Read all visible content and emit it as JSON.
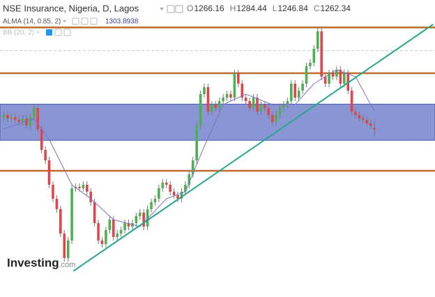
{
  "chart_data": {
    "type": "candlestick",
    "title": "NSE Insurance, Nigeria, D, Lagos",
    "ohlc_labels": [
      "O",
      "H",
      "L",
      "C"
    ],
    "open": [
      1290,
      1296,
      1288,
      1291,
      1285,
      1280,
      1288,
      1272,
      1291,
      1312,
      1264,
      1216,
      1192,
      1136,
      1104,
      1080,
      1024,
      968,
      1008,
      1128,
      1131,
      1128,
      1136,
      1120,
      1096,
      1048,
      1008,
      1000,
      1032,
      1056,
      1016,
      1024,
      1032,
      1048,
      1040,
      1048,
      1064,
      1072,
      1040,
      1080,
      1096,
      1104,
      1128,
      1141,
      1136,
      1120,
      1112,
      1104,
      1120,
      1136,
      1160,
      1192,
      1272,
      1344,
      1360,
      1304,
      1320,
      1312,
      1328,
      1336,
      1344,
      1336,
      1392,
      1368,
      1336,
      1328,
      1312,
      1336,
      1304,
      1320,
      1312,
      1296,
      1280,
      1296,
      1312,
      1320,
      1328,
      1368,
      1336,
      1352,
      1368,
      1408,
      1416,
      1448,
      1488,
      1384,
      1368,
      1392,
      1384,
      1400,
      1368,
      1392,
      1352,
      1304,
      1296,
      1288,
      1285,
      1277,
      1266.16
    ],
    "high": [
      1304,
      1304,
      1299,
      1299,
      1293,
      1296,
      1296,
      1299,
      1320,
      1320,
      1272,
      1224,
      1200,
      1144,
      1112,
      1088,
      1032,
      1016,
      1136,
      1139,
      1139,
      1144,
      1144,
      1128,
      1104,
      1056,
      1016,
      1040,
      1064,
      1064,
      1032,
      1040,
      1056,
      1056,
      1056,
      1072,
      1080,
      1080,
      1088,
      1104,
      1112,
      1136,
      1149,
      1149,
      1144,
      1128,
      1120,
      1128,
      1144,
      1168,
      1200,
      1280,
      1352,
      1368,
      1368,
      1328,
      1328,
      1336,
      1344,
      1352,
      1352,
      1400,
      1400,
      1376,
      1344,
      1336,
      1344,
      1344,
      1328,
      1328,
      1320,
      1304,
      1304,
      1320,
      1328,
      1336,
      1376,
      1376,
      1360,
      1376,
      1416,
      1424,
      1456,
      1496,
      1496,
      1392,
      1400,
      1400,
      1408,
      1408,
      1400,
      1400,
      1360,
      1312,
      1304,
      1296,
      1293,
      1285,
      1284.44
    ],
    "low": [
      1282,
      1280,
      1280,
      1277,
      1272,
      1272,
      1264,
      1264,
      1283,
      1256,
      1208,
      1184,
      1128,
      1096,
      1072,
      1016,
      960,
      960,
      1000,
      1120,
      1120,
      1120,
      1112,
      1088,
      1040,
      1000,
      992,
      992,
      1024,
      1008,
      1008,
      1016,
      1024,
      1032,
      1032,
      1040,
      1056,
      1032,
      1032,
      1072,
      1088,
      1096,
      1120,
      1128,
      1112,
      1104,
      1096,
      1096,
      1112,
      1128,
      1152,
      1184,
      1264,
      1336,
      1296,
      1296,
      1304,
      1304,
      1320,
      1328,
      1328,
      1328,
      1360,
      1328,
      1320,
      1304,
      1304,
      1296,
      1296,
      1304,
      1288,
      1272,
      1272,
      1288,
      1304,
      1312,
      1320,
      1328,
      1328,
      1344,
      1360,
      1400,
      1408,
      1440,
      1376,
      1360,
      1360,
      1376,
      1376,
      1360,
      1360,
      1344,
      1296,
      1288,
      1280,
      1277,
      1269,
      1264,
      1246.84
    ],
    "close": [
      1296,
      1288,
      1291,
      1285,
      1280,
      1288,
      1272,
      1291,
      1312,
      1264,
      1216,
      1192,
      1136,
      1104,
      1080,
      1024,
      968,
      1008,
      1128,
      1131,
      1128,
      1136,
      1120,
      1096,
      1048,
      1008,
      1000,
      1032,
      1056,
      1016,
      1024,
      1032,
      1048,
      1040,
      1048,
      1064,
      1072,
      1040,
      1080,
      1096,
      1104,
      1128,
      1141,
      1136,
      1120,
      1112,
      1104,
      1120,
      1136,
      1160,
      1192,
      1272,
      1344,
      1360,
      1304,
      1320,
      1312,
      1328,
      1336,
      1344,
      1336,
      1392,
      1368,
      1336,
      1328,
      1312,
      1336,
      1304,
      1320,
      1312,
      1296,
      1280,
      1296,
      1312,
      1320,
      1328,
      1368,
      1336,
      1352,
      1368,
      1408,
      1416,
      1448,
      1488,
      1384,
      1368,
      1392,
      1384,
      1400,
      1368,
      1392,
      1352,
      1304,
      1296,
      1288,
      1285,
      1277,
      1272,
      1262.34
    ],
    "up_color": "#4caf50",
    "down_color": "#e0454d",
    "xlim": [
      -1,
      114
    ],
    "ylim": [
      878.4,
      1560
    ],
    "indicators": [
      {
        "name": "ALMA (14, 0.85, 2)",
        "color": "#7b72c9",
        "x": [
          0,
          8,
          12,
          18,
          23,
          29,
          36,
          43,
          48,
          53,
          58,
          64,
          71,
          77,
          82,
          88,
          93,
          98
        ],
        "values": [
          1264,
          1288,
          1240,
          1136,
          1104,
          1056,
          1040,
          1104,
          1120,
          1224,
          1320,
          1344,
          1320,
          1320,
          1368,
          1400,
          1384,
          1303.8938
        ]
      },
      {
        "name": "BB (20, 2)"
      }
    ],
    "levels": [
      1497,
      1392,
      1168
    ],
    "level_color": "#c0692a",
    "dashed_level": 1444,
    "band": [
      1238,
      1321
    ],
    "band_color": "#4256b8",
    "trendline": {
      "x": [
        18.4,
        113.5
      ],
      "values": [
        938,
        1504
      ],
      "color": "#26a68b"
    },
    "watermark": [
      "Investing",
      ".com"
    ]
  }
}
